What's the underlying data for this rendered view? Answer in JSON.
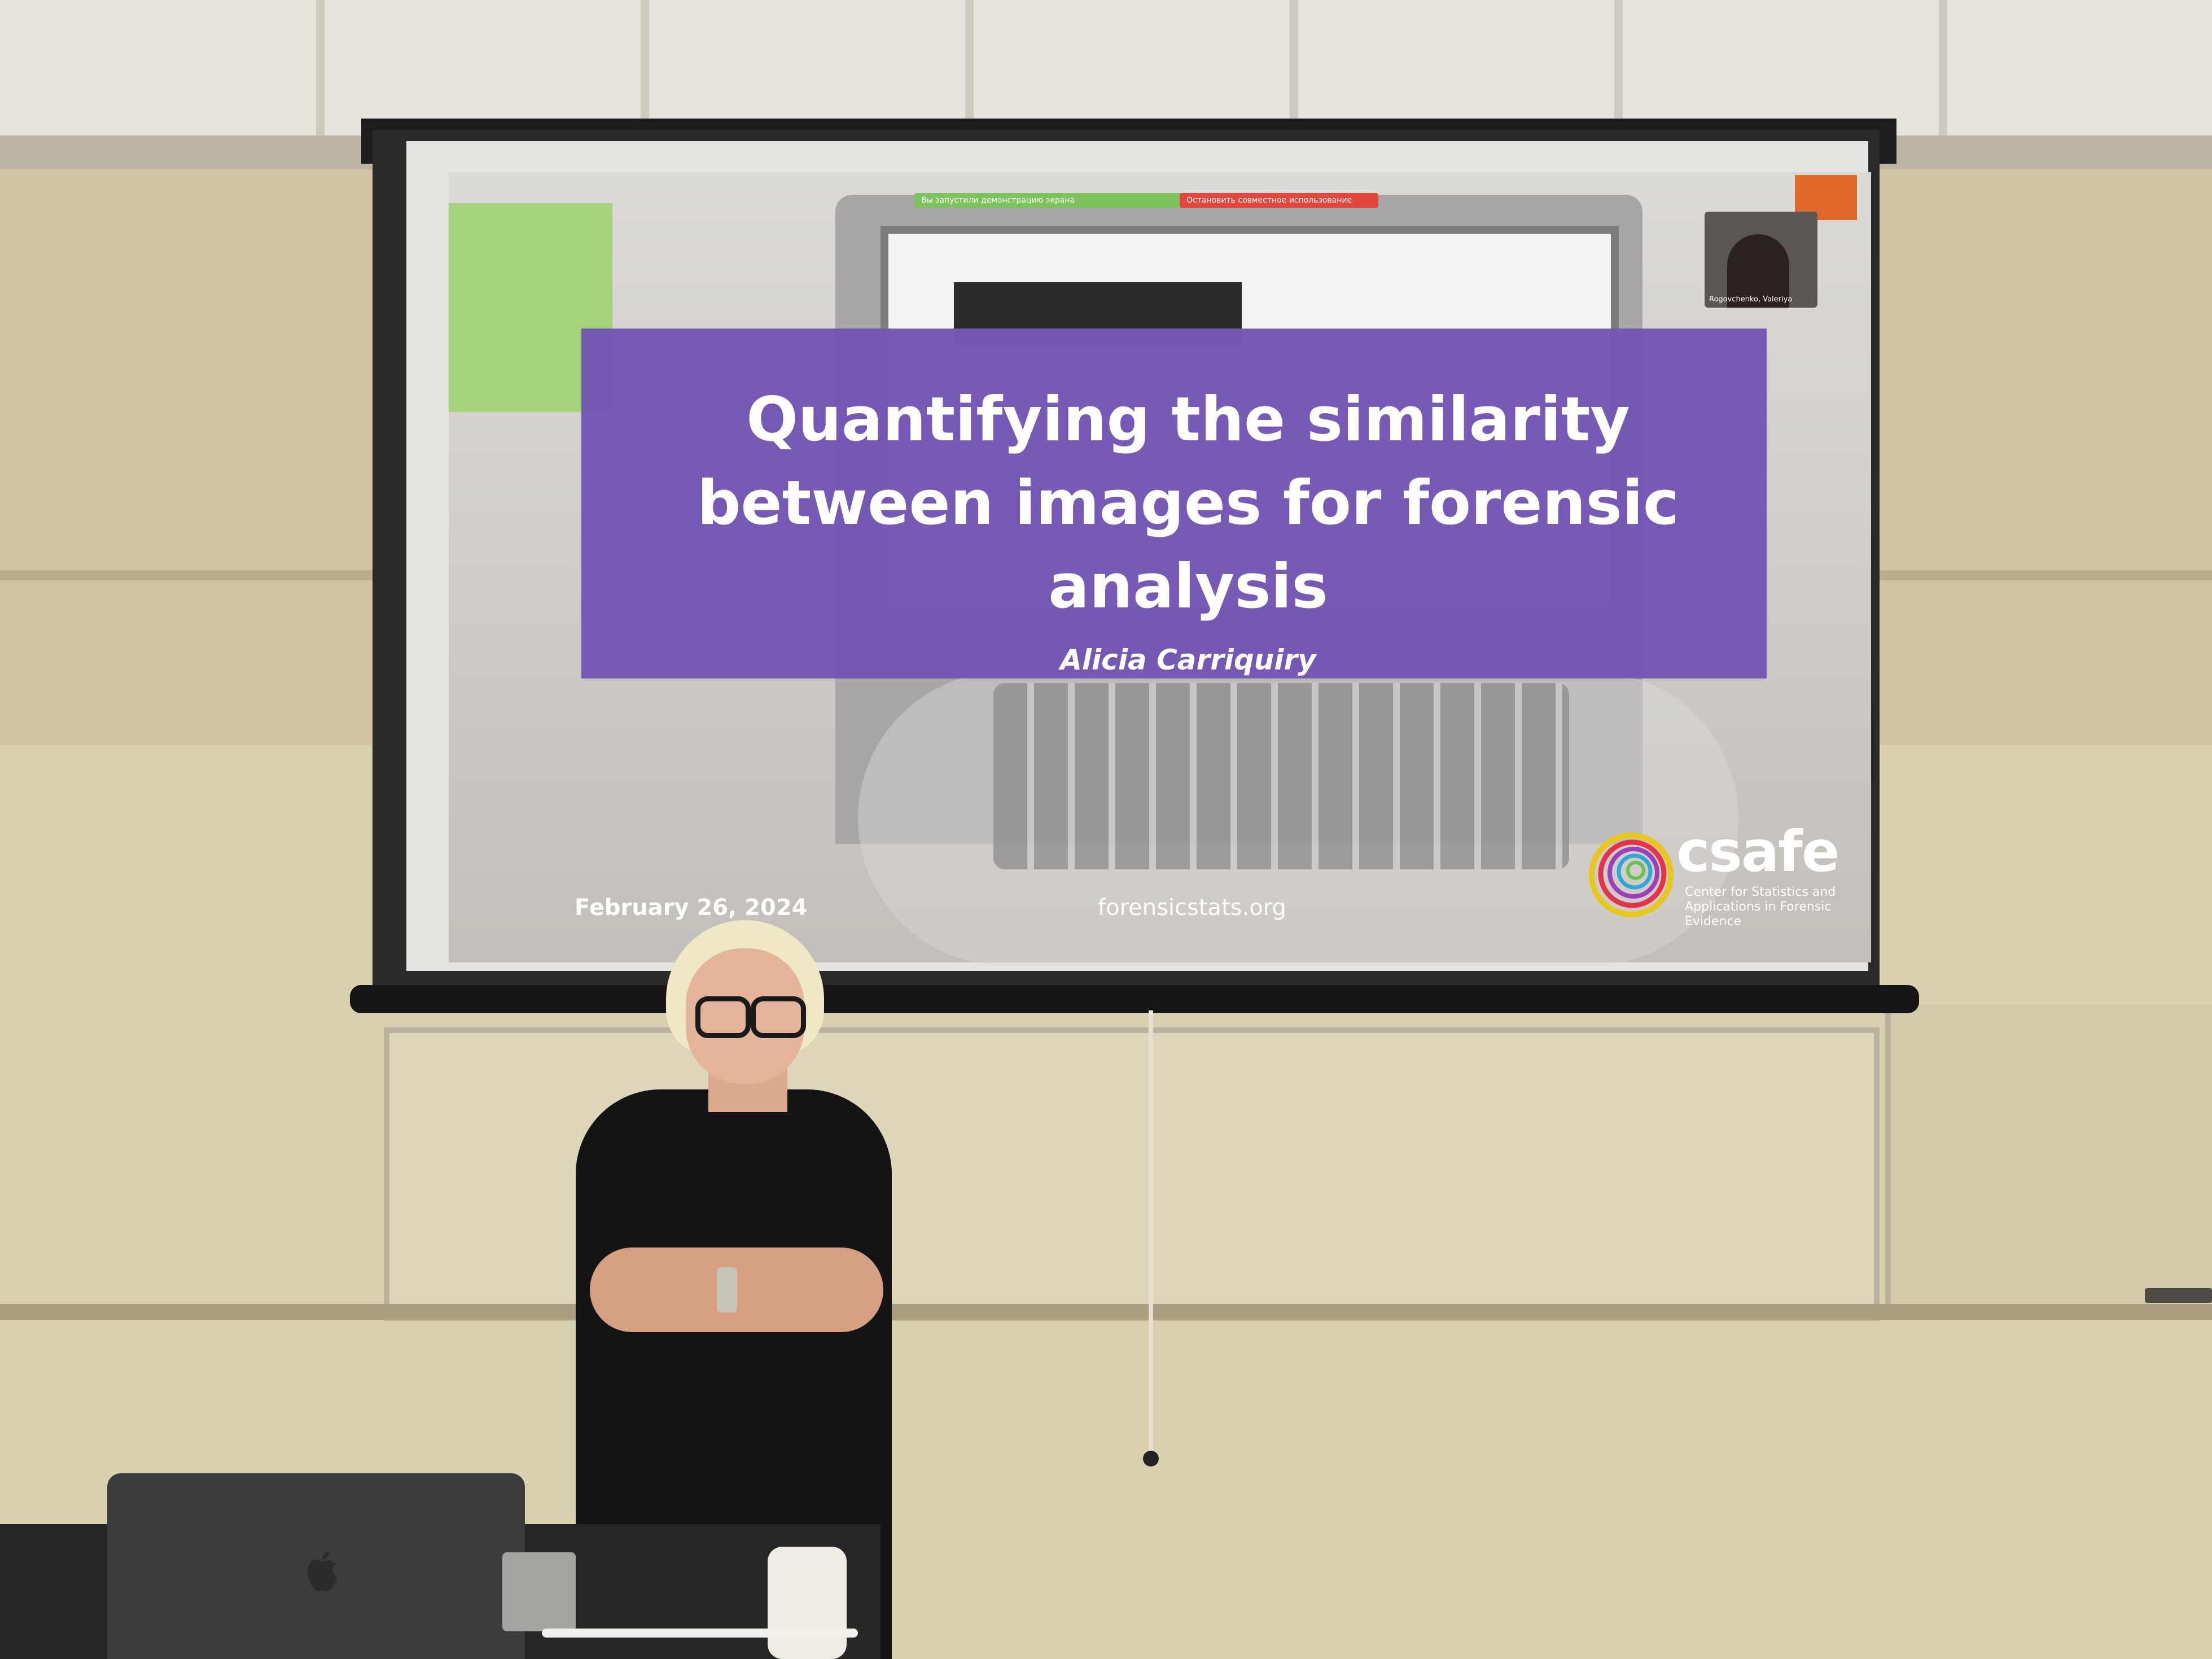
{
  "slide": {
    "title_lines": [
      "Quantifying the similarity",
      "between images for forensic",
      "analysis"
    ],
    "author": "Alicia Carriquiry",
    "date": "February 26, 2024",
    "website": "forensicstats.org",
    "logo": {
      "name": "csafe",
      "tagline": "Center for Statistics and Applications in Forensic Evidence"
    }
  },
  "share_overlay": {
    "green_bar_text": "Вы запустили демонстрацию экрана",
    "red_bar_text": "Остановить совместное использование",
    "participant_name": "Rogovchenko, Valeriya"
  },
  "colors": {
    "slide_purple": "#7357b5",
    "slide_green": "#a5d27a",
    "slide_orange": "#e06a2b"
  },
  "icons": [
    "apple-logo-icon",
    "csafe-logo-icon"
  ]
}
